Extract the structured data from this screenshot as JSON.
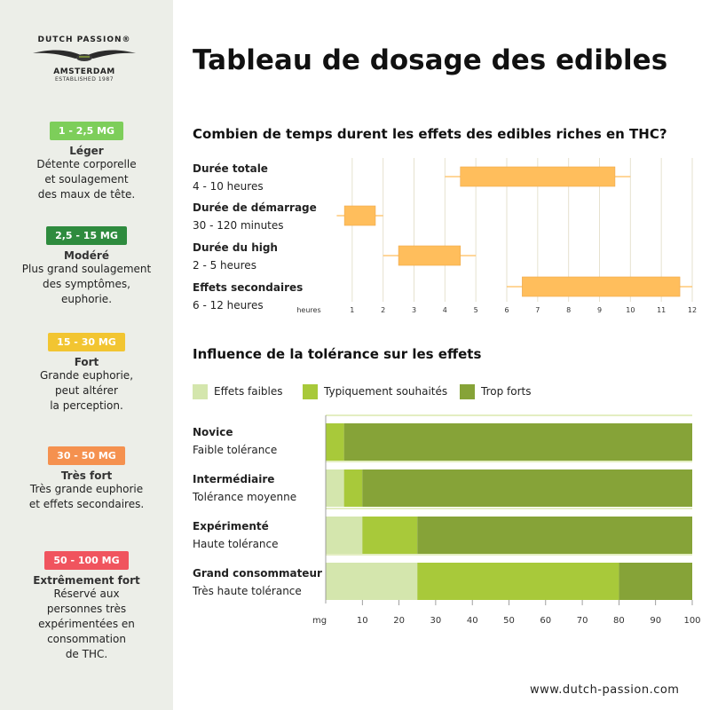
{
  "sidebar": {
    "logo": {
      "brand": "DUTCH PASSION®",
      "city": "AMSTERDAM",
      "established": "ESTABLISHED 1987"
    },
    "levels": [
      {
        "dose": "1 - 2,5 MG",
        "name": "Léger",
        "color": "#7dce5a",
        "desc": [
          "Détente corporelle",
          "et soulagement",
          "des maux de tête."
        ]
      },
      {
        "dose": "2,5 - 15 MG",
        "name": "Modéré",
        "color": "#2e8b3e",
        "desc": [
          "Plus grand soulagement",
          "des symptômes,",
          "euphorie."
        ]
      },
      {
        "dose": "15 - 30 MG",
        "name": "Fort",
        "color": "#f2c531",
        "desc": [
          "Grande euphorie,",
          "peut altérer",
          "la perception."
        ]
      },
      {
        "dose": "30 - 50 MG",
        "name": "Très fort",
        "color": "#f5914f",
        "desc": [
          "Très grande euphorie",
          "et effets secondaires."
        ]
      },
      {
        "dose": "50 - 100 MG",
        "name": "Extrêmement fort",
        "color": "#f0545e",
        "desc": [
          "Réservé aux",
          "personnes très",
          "expérimentées en",
          "consommation",
          "de THC."
        ]
      }
    ]
  },
  "title": "Tableau de dosage des edibles",
  "footer_url": "www.dutch-passion.com",
  "chart_data": [
    {
      "type": "bar",
      "orientation": "horizontal-range",
      "title": "Combien de temps durent les effets des edibles riches en THC?",
      "x_unit_label": "heures",
      "xlim": [
        0,
        12
      ],
      "xticks": [
        1,
        2,
        3,
        4,
        5,
        6,
        7,
        8,
        9,
        10,
        11,
        12
      ],
      "bar_color": "#ffbe5c",
      "rows": [
        {
          "label": "Durée totale",
          "sublabel": "4 - 10 heures",
          "box": [
            4.5,
            9.5
          ],
          "whisker": [
            4,
            10
          ]
        },
        {
          "label": "Durée de démarrage",
          "sublabel": "30 - 120 minutes",
          "box": [
            0.75,
            1.75
          ],
          "whisker": [
            0.5,
            2
          ]
        },
        {
          "label": "Durée du high",
          "sublabel": "2 - 5 heures",
          "box": [
            2.5,
            4.5
          ],
          "whisker": [
            2,
            5
          ]
        },
        {
          "label": "Effets secondaires",
          "sublabel": "6 - 12 heures",
          "box": [
            6.5,
            11.6
          ],
          "whisker": [
            6,
            12
          ]
        }
      ]
    },
    {
      "type": "bar",
      "orientation": "horizontal-stacked",
      "title": "Influence de la tolérance sur les effets",
      "x_unit_label": "mg",
      "xlim": [
        0,
        100
      ],
      "xticks": [
        10,
        20,
        30,
        40,
        50,
        60,
        70,
        80,
        90,
        100
      ],
      "series": [
        {
          "name": "Effets faibles",
          "color": "#d4e6ad"
        },
        {
          "name": "Typiquement souhaités",
          "color": "#a8c93a"
        },
        {
          "name": "Trop forts",
          "color": "#86a338"
        }
      ],
      "rows": [
        {
          "label": "Novice",
          "sublabel": "Faible tolérance",
          "segments": [
            [
              0,
              0
            ],
            [
              0,
              5
            ],
            [
              5,
              100
            ]
          ]
        },
        {
          "label": "Intermédiaire",
          "sublabel": "Tolérance moyenne",
          "segments": [
            [
              0,
              5
            ],
            [
              5,
              10
            ],
            [
              10,
              100
            ]
          ]
        },
        {
          "label": "Expérimenté",
          "sublabel": "Haute tolérance",
          "segments": [
            [
              0,
              10
            ],
            [
              10,
              25
            ],
            [
              25,
              100
            ]
          ]
        },
        {
          "label": "Grand consommateur",
          "sublabel": "Très haute tolérance",
          "segments": [
            [
              0,
              25
            ],
            [
              25,
              80
            ],
            [
              80,
              100
            ]
          ]
        }
      ]
    }
  ]
}
